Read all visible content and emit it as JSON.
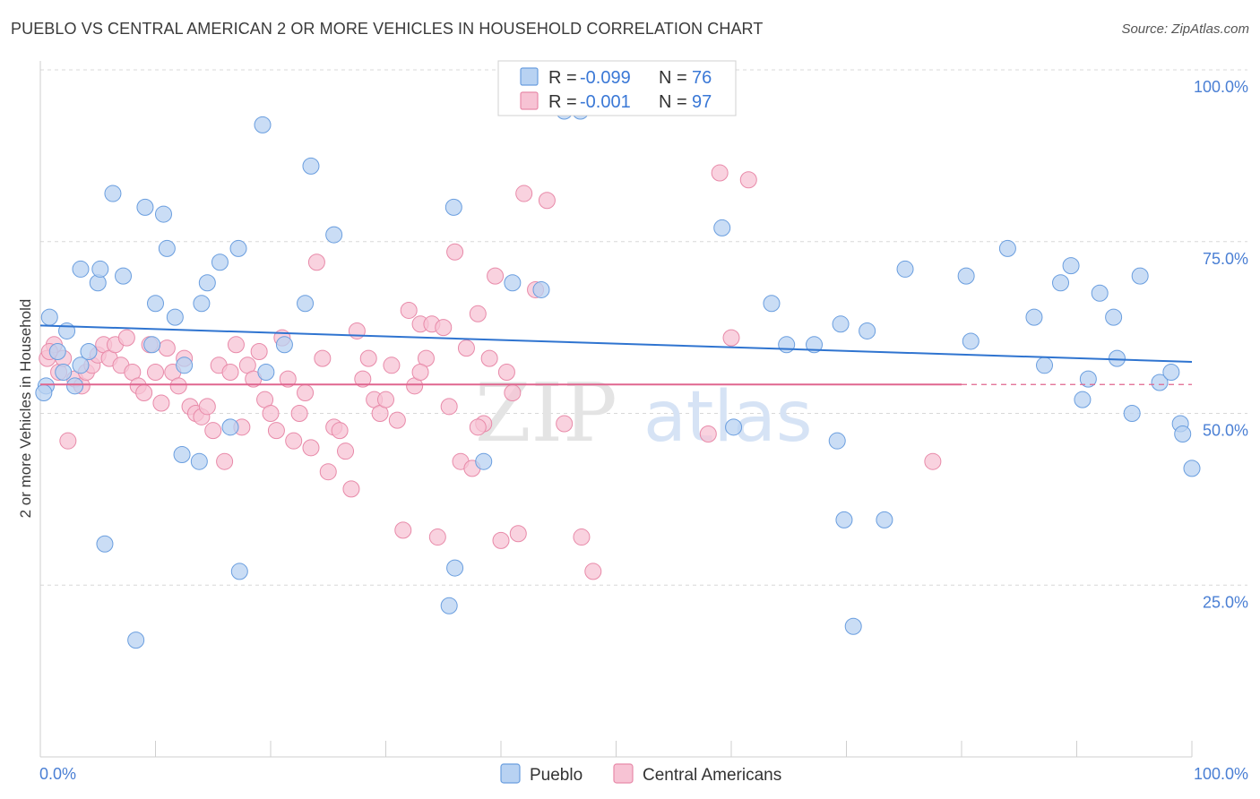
{
  "title": "PUEBLO VS CENTRAL AMERICAN 2 OR MORE VEHICLES IN HOUSEHOLD CORRELATION CHART",
  "source": "Source: ZipAtlas.com",
  "watermark": {
    "zip": "ZIP",
    "atlas": "atlas"
  },
  "colors": {
    "blue_fill": "#b8d2f2",
    "blue_stroke": "#6a9edf",
    "blue_line": "#2f74d0",
    "pink_fill": "#f7c3d4",
    "pink_stroke": "#e88aa9",
    "pink_line": "#e0668f",
    "grid": "#d8d8d8",
    "tick_text": "#4a7fd4"
  },
  "chart_data": {
    "type": "scatter",
    "xlabel": "",
    "ylabel": "2 or more Vehicles in Household",
    "xlim": [
      0,
      100
    ],
    "ylim": [
      0,
      100
    ],
    "x_tick_labels": [
      "0.0%",
      "100.0%"
    ],
    "y_ticks": [
      25,
      50,
      75,
      100
    ],
    "y_tick_labels": [
      "25.0%",
      "50.0%",
      "75.0%",
      "100.0%"
    ],
    "grid": true,
    "legend": [
      {
        "name": "Pueblo",
        "r_label": "R = ",
        "r_value": "-0.099",
        "n_label": "N = ",
        "n_value": "76"
      },
      {
        "name": "Central Americans",
        "r_label": "R = ",
        "r_value": "-0.001",
        "n_label": "N = ",
        "n_value": "97"
      }
    ],
    "series": [
      {
        "name": "Pueblo",
        "trend": {
          "x": [
            0,
            100
          ],
          "y": [
            62.8,
            57.5
          ]
        },
        "points": [
          [
            0.5,
            54
          ],
          [
            0.8,
            64
          ],
          [
            1.5,
            59
          ],
          [
            2,
            56
          ],
          [
            2.3,
            62
          ],
          [
            3,
            54
          ],
          [
            3.5,
            57
          ],
          [
            4.2,
            59
          ],
          [
            3.5,
            71
          ],
          [
            5,
            69
          ],
          [
            5.2,
            71
          ],
          [
            6.3,
            82
          ],
          [
            7.2,
            70
          ],
          [
            5.6,
            31
          ],
          [
            8.3,
            17
          ],
          [
            9.1,
            80
          ],
          [
            9.7,
            60
          ],
          [
            10,
            66
          ],
          [
            10.7,
            79
          ],
          [
            11,
            74
          ],
          [
            11.7,
            64
          ],
          [
            12.3,
            44
          ],
          [
            12.5,
            57
          ],
          [
            13.8,
            43
          ],
          [
            14,
            66
          ],
          [
            14.5,
            69
          ],
          [
            15.6,
            72
          ],
          [
            16.5,
            48
          ],
          [
            17.2,
            74
          ],
          [
            17.3,
            27
          ],
          [
            19.3,
            92
          ],
          [
            19.6,
            56
          ],
          [
            21.2,
            60
          ],
          [
            23,
            66
          ],
          [
            23.5,
            86
          ],
          [
            25.5,
            76
          ],
          [
            35.5,
            22
          ],
          [
            35.9,
            80
          ],
          [
            36,
            27.5
          ],
          [
            38.5,
            43
          ],
          [
            41,
            69
          ],
          [
            43.5,
            68
          ],
          [
            45.5,
            94
          ],
          [
            46.9,
            94
          ],
          [
            59.2,
            77
          ],
          [
            60.2,
            48
          ],
          [
            63.5,
            66
          ],
          [
            64.8,
            60
          ],
          [
            67.2,
            60
          ],
          [
            69.2,
            46
          ],
          [
            69.5,
            63
          ],
          [
            69.8,
            34.5
          ],
          [
            70.6,
            19
          ],
          [
            71.8,
            62
          ],
          [
            73.3,
            34.5
          ],
          [
            75.1,
            71
          ],
          [
            80.4,
            70
          ],
          [
            80.8,
            60.5
          ],
          [
            84,
            74
          ],
          [
            86.3,
            64
          ],
          [
            87.2,
            57
          ],
          [
            88.6,
            69
          ],
          [
            89.5,
            71.5
          ],
          [
            90.5,
            52
          ],
          [
            91,
            55
          ],
          [
            92,
            67.5
          ],
          [
            93.2,
            64
          ],
          [
            93.5,
            58
          ],
          [
            94.8,
            50
          ],
          [
            95.5,
            70
          ],
          [
            97.2,
            54.5
          ],
          [
            98.2,
            56
          ],
          [
            99,
            48.5
          ],
          [
            99.2,
            47
          ],
          [
            100,
            42
          ],
          [
            0.3,
            53
          ]
        ]
      },
      {
        "name": "Central Americans",
        "trend": {
          "x": [
            0,
            80
          ],
          "y": [
            54.2,
            54.2
          ]
        },
        "points": [
          [
            0.6,
            58
          ],
          [
            1.2,
            60
          ],
          [
            1.6,
            56
          ],
          [
            2,
            58
          ],
          [
            2.4,
            46
          ],
          [
            3,
            55
          ],
          [
            3.6,
            54
          ],
          [
            4,
            56
          ],
          [
            4.5,
            57
          ],
          [
            5,
            58.5
          ],
          [
            5.5,
            60
          ],
          [
            6,
            58
          ],
          [
            6.5,
            60
          ],
          [
            7,
            57
          ],
          [
            7.5,
            61
          ],
          [
            8,
            56
          ],
          [
            8.5,
            54
          ],
          [
            9,
            53
          ],
          [
            9.5,
            60
          ],
          [
            10,
            56
          ],
          [
            10.5,
            51.5
          ],
          [
            11,
            59.5
          ],
          [
            11.5,
            56
          ],
          [
            12,
            54
          ],
          [
            12.5,
            58
          ],
          [
            13,
            51
          ],
          [
            13.5,
            50
          ],
          [
            14,
            49.5
          ],
          [
            14.5,
            51
          ],
          [
            15,
            47.5
          ],
          [
            15.5,
            57
          ],
          [
            16,
            43
          ],
          [
            16.5,
            56
          ],
          [
            17,
            60
          ],
          [
            17.5,
            48
          ],
          [
            18,
            57
          ],
          [
            18.5,
            55
          ],
          [
            19,
            59
          ],
          [
            19.5,
            52
          ],
          [
            20,
            50
          ],
          [
            20.5,
            47.5
          ],
          [
            21,
            61
          ],
          [
            21.5,
            55
          ],
          [
            22,
            46
          ],
          [
            22.5,
            50
          ],
          [
            23,
            53
          ],
          [
            23.5,
            45
          ],
          [
            24,
            72
          ],
          [
            24.5,
            58
          ],
          [
            25,
            41.5
          ],
          [
            25.5,
            48
          ],
          [
            26,
            47.5
          ],
          [
            26.5,
            44.5
          ],
          [
            27,
            39
          ],
          [
            27.5,
            62
          ],
          [
            28,
            55
          ],
          [
            28.5,
            58
          ],
          [
            29,
            52
          ],
          [
            29.5,
            50
          ],
          [
            30,
            52
          ],
          [
            30.5,
            57
          ],
          [
            31,
            49
          ],
          [
            31.5,
            33
          ],
          [
            32,
            65
          ],
          [
            32.5,
            54
          ],
          [
            33,
            63
          ],
          [
            33.5,
            58
          ],
          [
            34,
            63
          ],
          [
            34.5,
            32
          ],
          [
            35,
            62.5
          ],
          [
            35.5,
            51
          ],
          [
            36,
            73.5
          ],
          [
            36.5,
            43
          ],
          [
            37,
            59.5
          ],
          [
            37.5,
            42
          ],
          [
            38,
            64.5
          ],
          [
            38.5,
            48.5
          ],
          [
            39,
            58
          ],
          [
            39.5,
            70
          ],
          [
            40,
            31.5
          ],
          [
            40.5,
            56
          ],
          [
            41,
            53
          ],
          [
            41.5,
            32.5
          ],
          [
            42,
            82
          ],
          [
            43,
            68
          ],
          [
            44,
            81
          ],
          [
            45.5,
            48.5
          ],
          [
            47,
            32
          ],
          [
            48,
            27
          ],
          [
            58,
            47
          ],
          [
            59,
            85
          ],
          [
            60,
            61
          ],
          [
            61.5,
            84
          ],
          [
            77.5,
            43
          ],
          [
            38,
            48
          ],
          [
            33,
            56
          ],
          [
            0.8,
            59
          ]
        ]
      }
    ]
  }
}
